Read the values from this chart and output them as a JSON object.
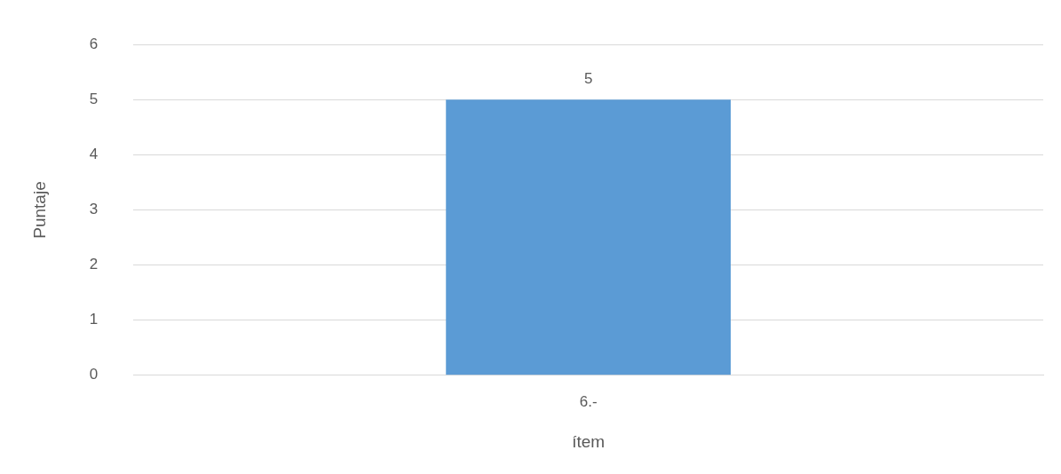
{
  "chart_data": {
    "type": "bar",
    "categories": [
      "6.-"
    ],
    "values": [
      5
    ],
    "color": "#5b9bd5",
    "xlabel": "ítem",
    "ylabel": "Puntaje",
    "ylim": [
      0,
      6
    ],
    "yticks": [
      0,
      1,
      2,
      3,
      4,
      5,
      6
    ],
    "grid": "y",
    "data_labels": true,
    "legend": false
  }
}
